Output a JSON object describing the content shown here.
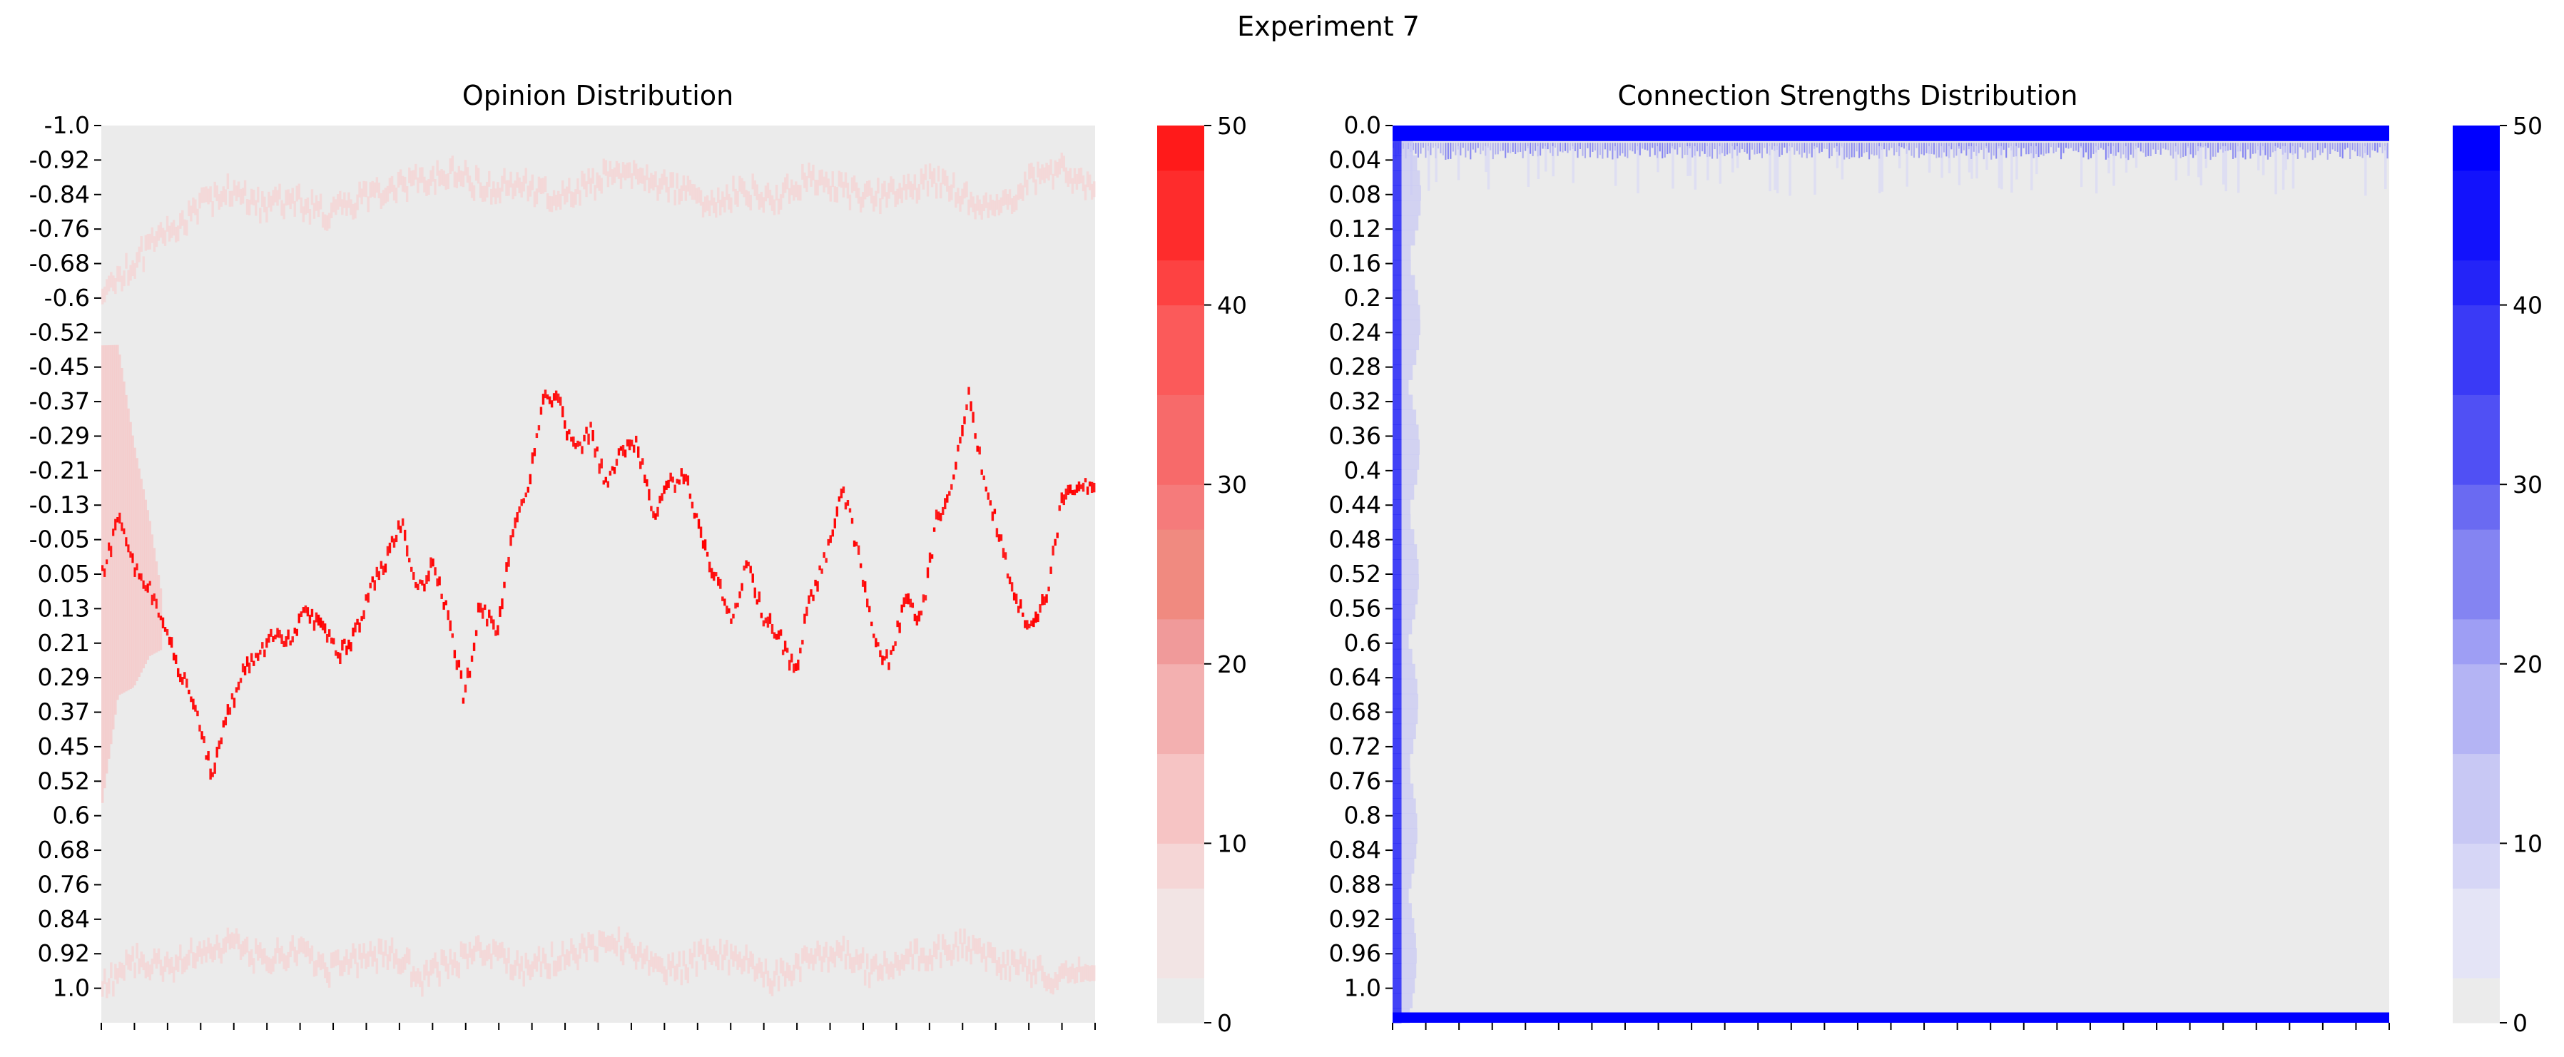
{
  "figure_title": "Experiment 7",
  "colors": {
    "background_cell": "#ebebeb",
    "opinion_scale": [
      "#ebebeb",
      "#f2e4e4",
      "#f5d6d6",
      "#f6c4c4",
      "#f3b0b0",
      "#f09a9a",
      "#f08a80",
      "#f57b7b",
      "#f76a6a",
      "#fb5a5a",
      "#fd4242",
      "#fe2c2c",
      "#ff1a1a"
    ],
    "connection_scale": [
      "#ebebeb",
      "#e4e4f6",
      "#d6d6f6",
      "#c8c8f4",
      "#b4b4f4",
      "#9e9ef4",
      "#8484f2",
      "#6a6af2",
      "#5050f4",
      "#3a3af6",
      "#2424f8",
      "#1212fc",
      "#0000ff"
    ],
    "opinion_accent": "#ff0000",
    "connection_accent": "#0000ff"
  },
  "chart_data": [
    {
      "type": "heatmap",
      "title": "Opinion Distribution",
      "xlabel": "",
      "ylabel": "",
      "y_tick_labels": [
        "-1.0",
        "-0.92",
        "-0.84",
        "-0.76",
        "-0.68",
        "-0.6",
        "-0.52",
        "-0.45",
        "-0.37",
        "-0.29",
        "-0.21",
        "-0.13",
        "-0.05",
        "0.05",
        "0.13",
        "0.21",
        "0.29",
        "0.37",
        "0.45",
        "0.52",
        "0.6",
        "0.68",
        "0.76",
        "0.84",
        "0.92",
        "1.0"
      ],
      "y_range": [
        -1.0,
        1.0
      ],
      "x_tick_count": 31,
      "colorbar": {
        "min": 0,
        "max": 50,
        "tick_labels": [
          "0",
          "10",
          "20",
          "30",
          "40",
          "50"
        ],
        "levels": 20
      },
      "main_trace": [
        0.0,
        -0.12,
        -0.02,
        0.03,
        0.13,
        0.22,
        0.32,
        0.45,
        0.3,
        0.22,
        0.18,
        0.13,
        0.15,
        0.08,
        0.12,
        0.18,
        0.14,
        0.04,
        -0.03,
        -0.12,
        0.04,
        -0.02,
        0.1,
        0.28,
        0.06,
        0.14,
        -0.08,
        -0.18,
        -0.4,
        -0.38,
        -0.27,
        -0.32,
        -0.2,
        -0.27,
        -0.29,
        -0.12,
        -0.2,
        -0.22,
        -0.08,
        0.01,
        0.1,
        -0.03,
        0.1,
        0.14,
        0.22,
        0.05,
        -0.04,
        -0.2,
        -0.05,
        0.15,
        0.2,
        0.05,
        0.1,
        -0.12,
        -0.2,
        -0.4,
        -0.22,
        -0.08,
        0.06,
        0.12,
        0.05,
        -0.18,
        -0.2,
        -0.2
      ],
      "upper_band": [
        -0.62,
        -0.7,
        -0.76,
        -0.82,
        -0.86,
        -0.82,
        -0.84,
        -0.8,
        -0.84,
        -0.86,
        -0.88,
        -0.9,
        -0.86,
        -0.88,
        -0.84,
        -0.86,
        -0.9,
        -0.88,
        -0.86,
        -0.82,
        -0.86,
        -0.84,
        -0.88,
        -0.86,
        -0.84,
        -0.86,
        -0.88,
        -0.84,
        -0.82,
        -0.88,
        -0.9,
        -0.86
      ],
      "lower_band": [
        0.92,
        0.86,
        0.88,
        0.84,
        0.82,
        0.86,
        0.84,
        0.88,
        0.86,
        0.84,
        0.9,
        0.86,
        0.84,
        0.88,
        0.86,
        0.84,
        0.82,
        0.86,
        0.88,
        0.84,
        0.86,
        0.9,
        0.86,
        0.84,
        0.88,
        0.86,
        0.84,
        0.82,
        0.86,
        0.88,
        0.9,
        0.88
      ]
    },
    {
      "type": "heatmap",
      "title": "Connection Strengths Distribution",
      "xlabel": "",
      "ylabel": "",
      "y_tick_labels": [
        "0.0",
        "0.04",
        "0.08",
        "0.12",
        "0.16",
        "0.2",
        "0.24",
        "0.28",
        "0.32",
        "0.36",
        "0.4",
        "0.44",
        "0.48",
        "0.52",
        "0.56",
        "0.6",
        "0.64",
        "0.68",
        "0.72",
        "0.76",
        "0.8",
        "0.84",
        "0.88",
        "0.92",
        "0.96",
        "1.0"
      ],
      "y_range": [
        0.0,
        1.0
      ],
      "x_tick_count": 31,
      "colorbar": {
        "min": 0,
        "max": 50,
        "tick_labels": [
          "0",
          "10",
          "20",
          "30",
          "40",
          "50"
        ],
        "levels": 20
      },
      "rows_saturated": [
        "0.0",
        "1.0"
      ],
      "early_column_fraction": 0.02
    }
  ]
}
